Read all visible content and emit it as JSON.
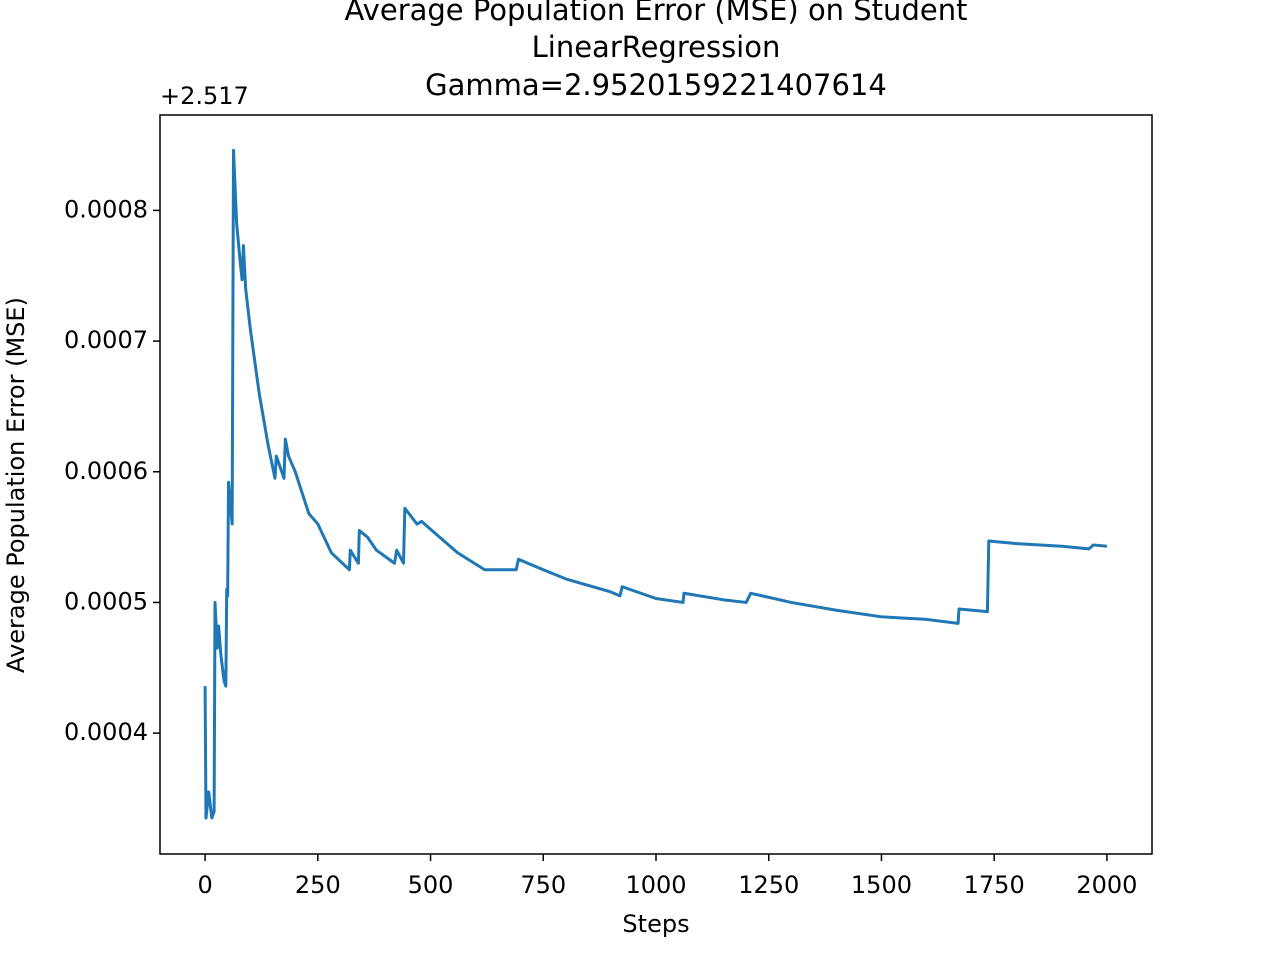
{
  "chart_data": {
    "type": "line",
    "title": [
      "Average Population Error (MSE) on Student",
      "LinearRegression",
      "Gamma=2.9520159221407614"
    ],
    "x_label": "Steps",
    "y_label": "Average Population Error (MSE)",
    "y_offset": "+2.517",
    "xlim": [
      -100,
      2100
    ],
    "xticks": [
      0,
      250,
      500,
      750,
      1000,
      1250,
      1500,
      1750,
      2000
    ],
    "ylim": [
      0.0003075,
      0.000873
    ],
    "yticks": [
      0.0004,
      0.0005,
      0.0006,
      0.0007,
      0.0008
    ],
    "grid": false,
    "series": [
      {
        "color": "#1f77b4",
        "x": [
          0,
          2,
          8,
          15,
          20,
          22,
          27,
          30,
          35,
          42,
          46,
          48,
          50,
          52,
          60,
          63,
          70,
          78,
          82,
          85,
          90,
          100,
          120,
          140,
          155,
          158,
          175,
          178,
          185,
          200,
          230,
          250,
          280,
          320,
          322,
          340,
          342,
          360,
          380,
          420,
          425,
          440,
          443,
          470,
          480,
          520,
          560,
          620,
          690,
          695,
          750,
          800,
          900,
          920,
          925,
          1000,
          1060,
          1062,
          1150,
          1200,
          1210,
          1300,
          1400,
          1500,
          1600,
          1670,
          1672,
          1735,
          1738,
          1800,
          1900,
          1960,
          1970,
          2000
        ],
        "values": [
          0.000436,
          0.000335,
          0.000355,
          0.000335,
          0.00034,
          0.0005,
          0.000465,
          0.000482,
          0.00046,
          0.00044,
          0.000436,
          0.00051,
          0.000505,
          0.000592,
          0.00056,
          0.000846,
          0.00079,
          0.00076,
          0.000747,
          0.000773,
          0.00074,
          0.00071,
          0.00066,
          0.00062,
          0.000595,
          0.000612,
          0.000595,
          0.000625,
          0.000612,
          0.0006,
          0.000568,
          0.00056,
          0.000538,
          0.000525,
          0.00054,
          0.00053,
          0.000555,
          0.00055,
          0.00054,
          0.00053,
          0.00054,
          0.00053,
          0.000572,
          0.00056,
          0.000562,
          0.00055,
          0.000538,
          0.000525,
          0.000525,
          0.000533,
          0.000525,
          0.000518,
          0.000508,
          0.000505,
          0.000512,
          0.000503,
          0.0005,
          0.000507,
          0.000502,
          0.0005,
          0.000507,
          0.0005,
          0.000494,
          0.000489,
          0.000487,
          0.000484,
          0.000495,
          0.000493,
          0.000547,
          0.000545,
          0.000543,
          0.000541,
          0.000544,
          0.000543
        ]
      }
    ]
  }
}
